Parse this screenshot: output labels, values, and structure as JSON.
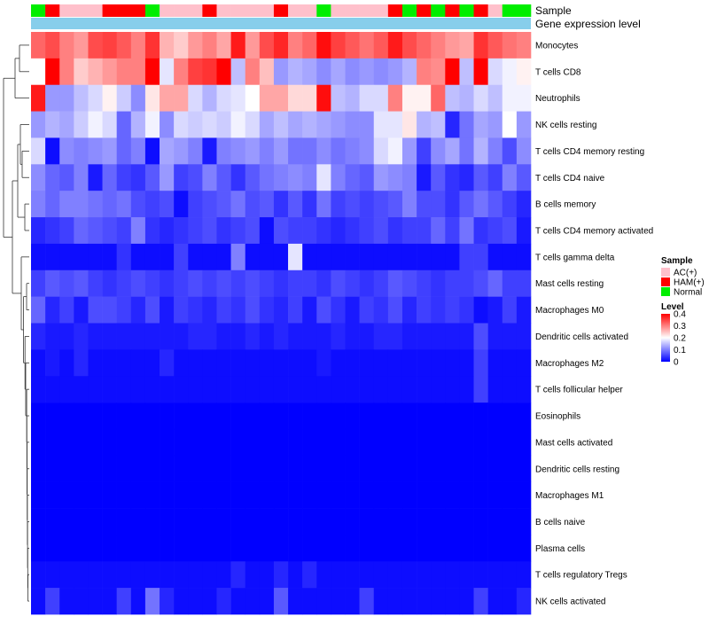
{
  "chart_data": {
    "type": "heatmap",
    "title": "",
    "annotation_tracks": [
      {
        "name": "Sample",
        "label": "Sample"
      },
      {
        "name": "Gene expression level",
        "label": "Gene expression level",
        "color": "#87ceeb"
      }
    ],
    "sample_groups": [
      "AC(+)",
      "HAM(+)",
      "Normal"
    ],
    "sample_colors": {
      "AC(+)": "#ffc0cb",
      "HAM(+)": "#ff0000",
      "Normal": "#00ee00"
    },
    "samples": [
      "Normal",
      "HAM(+)",
      "AC(+)",
      "AC(+)",
      "AC(+)",
      "HAM(+)",
      "HAM(+)",
      "HAM(+)",
      "Normal",
      "AC(+)",
      "AC(+)",
      "AC(+)",
      "HAM(+)",
      "AC(+)",
      "AC(+)",
      "AC(+)",
      "AC(+)",
      "HAM(+)",
      "AC(+)",
      "AC(+)",
      "Normal",
      "AC(+)",
      "AC(+)",
      "AC(+)",
      "AC(+)",
      "HAM(+)",
      "Normal",
      "HAM(+)",
      "Normal",
      "HAM(+)",
      "Normal",
      "HAM(+)",
      "AC(+)",
      "Normal",
      "Normal"
    ],
    "rows": [
      "Monocytes",
      "T cells CD8",
      "Neutrophils",
      "NK cells resting",
      "T cells CD4 memory resting",
      "T cells CD4 naive",
      "B cells memory",
      "T cells CD4 memory activated",
      "T cells gamma delta",
      "Mast cells resting",
      "Macrophages M0",
      "Dendritic cells activated",
      "Macrophages M2",
      "T cells follicular helper",
      "Eosinophils",
      "Mast cells activated",
      "Dendritic cells resting",
      "Macrophages M1",
      "B cells naive",
      "Plasma cells",
      "T cells regulatory  Tregs",
      "NK cells activated"
    ],
    "values": [
      [
        0.32,
        0.34,
        0.3,
        0.28,
        0.34,
        0.35,
        0.33,
        0.3,
        0.36,
        0.26,
        0.24,
        0.28,
        0.3,
        0.27,
        0.38,
        0.28,
        0.34,
        0.37,
        0.3,
        0.32,
        0.39,
        0.35,
        0.33,
        0.31,
        0.33,
        0.38,
        0.34,
        0.32,
        0.3,
        0.28,
        0.27,
        0.36,
        0.33,
        0.31,
        0.3
      ],
      [
        0.2,
        0.4,
        0.3,
        0.24,
        0.26,
        0.28,
        0.3,
        0.3,
        0.42,
        0.18,
        0.3,
        0.35,
        0.36,
        0.42,
        0.15,
        0.3,
        0.25,
        0.12,
        0.14,
        0.13,
        0.11,
        0.13,
        0.11,
        0.12,
        0.11,
        0.12,
        0.14,
        0.3,
        0.29,
        0.42,
        0.15,
        0.42,
        0.17,
        0.19,
        0.21
      ],
      [
        0.38,
        0.12,
        0.12,
        0.15,
        0.17,
        0.21,
        0.16,
        0.11,
        0.22,
        0.27,
        0.27,
        0.17,
        0.14,
        0.17,
        0.18,
        0.2,
        0.27,
        0.27,
        0.23,
        0.23,
        0.39,
        0.15,
        0.14,
        0.17,
        0.17,
        0.3,
        0.21,
        0.21,
        0.32,
        0.15,
        0.14,
        0.17,
        0.15,
        0.19,
        0.19
      ],
      [
        0.12,
        0.14,
        0.13,
        0.16,
        0.19,
        0.17,
        0.08,
        0.14,
        0.19,
        0.11,
        0.17,
        0.16,
        0.17,
        0.16,
        0.19,
        0.17,
        0.13,
        0.15,
        0.13,
        0.14,
        0.13,
        0.12,
        0.11,
        0.11,
        0.18,
        0.18,
        0.22,
        0.14,
        0.15,
        0.03,
        0.09,
        0.13,
        0.12,
        0.2,
        0.12
      ],
      [
        0.17,
        0.01,
        0.11,
        0.1,
        0.11,
        0.12,
        0.08,
        0.1,
        0.01,
        0.13,
        0.12,
        0.1,
        0.02,
        0.1,
        0.11,
        0.12,
        0.1,
        0.12,
        0.09,
        0.09,
        0.11,
        0.09,
        0.1,
        0.11,
        0.17,
        0.19,
        0.12,
        0.05,
        0.11,
        0.13,
        0.09,
        0.14,
        0.1,
        0.06,
        0.11
      ],
      [
        0.11,
        0.08,
        0.07,
        0.1,
        0.02,
        0.08,
        0.05,
        0.04,
        0.07,
        0.12,
        0.05,
        0.06,
        0.1,
        0.07,
        0.04,
        0.07,
        0.09,
        0.1,
        0.11,
        0.1,
        0.18,
        0.1,
        0.08,
        0.07,
        0.12,
        0.11,
        0.1,
        0.02,
        0.07,
        0.04,
        0.03,
        0.07,
        0.05,
        0.1,
        0.07
      ],
      [
        0.1,
        0.08,
        0.1,
        0.1,
        0.09,
        0.08,
        0.09,
        0.06,
        0.05,
        0.06,
        0.01,
        0.05,
        0.06,
        0.07,
        0.09,
        0.06,
        0.07,
        0.04,
        0.07,
        0.04,
        0.09,
        0.05,
        0.06,
        0.05,
        0.06,
        0.07,
        0.1,
        0.06,
        0.06,
        0.04,
        0.07,
        0.09,
        0.07,
        0.05,
        0.03
      ],
      [
        0.03,
        0.04,
        0.05,
        0.08,
        0.07,
        0.06,
        0.05,
        0.1,
        0.04,
        0.03,
        0.04,
        0.05,
        0.06,
        0.04,
        0.05,
        0.06,
        0.01,
        0.06,
        0.05,
        0.05,
        0.04,
        0.03,
        0.04,
        0.05,
        0.06,
        0.04,
        0.05,
        0.05,
        0.08,
        0.05,
        0.09,
        0.04,
        0.05,
        0.06,
        0.02
      ],
      [
        0.01,
        0.01,
        0.01,
        0.01,
        0.01,
        0.01,
        0.04,
        0.01,
        0.01,
        0.01,
        0.05,
        0.01,
        0.01,
        0.01,
        0.1,
        0.01,
        0.01,
        0.01,
        0.18,
        0.01,
        0.01,
        0.01,
        0.01,
        0.01,
        0.01,
        0.01,
        0.01,
        0.01,
        0.01,
        0.01,
        0.05,
        0.05,
        0.01,
        0.01,
        0.01
      ],
      [
        0.05,
        0.07,
        0.06,
        0.07,
        0.05,
        0.04,
        0.05,
        0.06,
        0.05,
        0.04,
        0.05,
        0.06,
        0.05,
        0.06,
        0.05,
        0.06,
        0.05,
        0.04,
        0.05,
        0.05,
        0.04,
        0.06,
        0.05,
        0.04,
        0.05,
        0.07,
        0.06,
        0.05,
        0.04,
        0.05,
        0.05,
        0.06,
        0.08,
        0.05,
        0.05
      ],
      [
        0.08,
        0.03,
        0.05,
        0.02,
        0.06,
        0.06,
        0.05,
        0.03,
        0.06,
        0.02,
        0.05,
        0.04,
        0.03,
        0.05,
        0.04,
        0.06,
        0.04,
        0.03,
        0.05,
        0.02,
        0.06,
        0.04,
        0.02,
        0.05,
        0.04,
        0.06,
        0.03,
        0.05,
        0.04,
        0.05,
        0.04,
        0.01,
        0.02,
        0.05,
        0.02
      ],
      [
        0.03,
        0.02,
        0.02,
        0.03,
        0.02,
        0.02,
        0.02,
        0.02,
        0.02,
        0.02,
        0.02,
        0.03,
        0.03,
        0.02,
        0.02,
        0.03,
        0.02,
        0.03,
        0.02,
        0.02,
        0.02,
        0.03,
        0.02,
        0.02,
        0.03,
        0.03,
        0.02,
        0.02,
        0.02,
        0.02,
        0.02,
        0.06,
        0.02,
        0.02,
        0.02
      ],
      [
        0.01,
        0.02,
        0.01,
        0.03,
        0.01,
        0.01,
        0.01,
        0.01,
        0.01,
        0.03,
        0.01,
        0.01,
        0.01,
        0.01,
        0.01,
        0.01,
        0.01,
        0.01,
        0.01,
        0.01,
        0.02,
        0.01,
        0.01,
        0.01,
        0.01,
        0.01,
        0.01,
        0.01,
        0.01,
        0.01,
        0.01,
        0.05,
        0.01,
        0.01,
        0.01
      ],
      [
        0.01,
        0.01,
        0.01,
        0.01,
        0.01,
        0.01,
        0.01,
        0.01,
        0.01,
        0.01,
        0.01,
        0.01,
        0.01,
        0.01,
        0.01,
        0.01,
        0.01,
        0.01,
        0.01,
        0.01,
        0.01,
        0.01,
        0.01,
        0.01,
        0.01,
        0.01,
        0.01,
        0.01,
        0.01,
        0.01,
        0.01,
        0.05,
        0.01,
        0.01,
        0.01
      ],
      [
        0.0,
        0.0,
        0.0,
        0.0,
        0.0,
        0.0,
        0.0,
        0.0,
        0.0,
        0.0,
        0.0,
        0.0,
        0.0,
        0.0,
        0.0,
        0.0,
        0.0,
        0.0,
        0.0,
        0.0,
        0.0,
        0.0,
        0.0,
        0.0,
        0.0,
        0.0,
        0.0,
        0.0,
        0.0,
        0.0,
        0.0,
        0.0,
        0.0,
        0.0,
        0.0
      ],
      [
        0.0,
        0.0,
        0.0,
        0.0,
        0.0,
        0.0,
        0.0,
        0.0,
        0.0,
        0.0,
        0.0,
        0.0,
        0.0,
        0.0,
        0.0,
        0.0,
        0.0,
        0.0,
        0.0,
        0.0,
        0.0,
        0.0,
        0.0,
        0.0,
        0.0,
        0.0,
        0.0,
        0.0,
        0.0,
        0.0,
        0.0,
        0.0,
        0.0,
        0.0,
        0.0
      ],
      [
        0.0,
        0.0,
        0.0,
        0.0,
        0.0,
        0.0,
        0.0,
        0.0,
        0.0,
        0.0,
        0.0,
        0.0,
        0.0,
        0.0,
        0.0,
        0.0,
        0.0,
        0.0,
        0.0,
        0.0,
        0.0,
        0.0,
        0.0,
        0.0,
        0.0,
        0.0,
        0.0,
        0.0,
        0.0,
        0.0,
        0.0,
        0.0,
        0.0,
        0.0,
        0.0
      ],
      [
        0.0,
        0.0,
        0.0,
        0.0,
        0.0,
        0.0,
        0.0,
        0.0,
        0.0,
        0.0,
        0.0,
        0.0,
        0.0,
        0.0,
        0.0,
        0.0,
        0.0,
        0.0,
        0.0,
        0.0,
        0.0,
        0.0,
        0.0,
        0.0,
        0.0,
        0.0,
        0.0,
        0.0,
        0.0,
        0.0,
        0.0,
        0.0,
        0.0,
        0.0,
        0.0
      ],
      [
        0.0,
        0.0,
        0.0,
        0.0,
        0.0,
        0.0,
        0.0,
        0.0,
        0.0,
        0.0,
        0.0,
        0.0,
        0.0,
        0.0,
        0.0,
        0.0,
        0.0,
        0.0,
        0.0,
        0.0,
        0.0,
        0.0,
        0.0,
        0.0,
        0.0,
        0.0,
        0.0,
        0.0,
        0.0,
        0.0,
        0.0,
        0.0,
        0.0,
        0.0,
        0.0
      ],
      [
        0.0,
        0.0,
        0.0,
        0.0,
        0.0,
        0.0,
        0.0,
        0.0,
        0.0,
        0.0,
        0.0,
        0.0,
        0.0,
        0.0,
        0.0,
        0.0,
        0.0,
        0.0,
        0.0,
        0.0,
        0.0,
        0.0,
        0.0,
        0.0,
        0.0,
        0.0,
        0.0,
        0.0,
        0.0,
        0.0,
        0.0,
        0.0,
        0.0,
        0.0,
        0.0
      ],
      [
        0.01,
        0.01,
        0.01,
        0.01,
        0.01,
        0.01,
        0.01,
        0.01,
        0.01,
        0.01,
        0.01,
        0.01,
        0.01,
        0.01,
        0.03,
        0.01,
        0.01,
        0.03,
        0.01,
        0.03,
        0.01,
        0.01,
        0.01,
        0.01,
        0.01,
        0.01,
        0.01,
        0.01,
        0.01,
        0.01,
        0.01,
        0.01,
        0.01,
        0.01,
        0.01
      ],
      [
        0.01,
        0.05,
        0.01,
        0.01,
        0.01,
        0.01,
        0.05,
        0.01,
        0.09,
        0.03,
        0.01,
        0.01,
        0.01,
        0.03,
        0.01,
        0.01,
        0.01,
        0.07,
        0.01,
        0.01,
        0.01,
        0.01,
        0.01,
        0.05,
        0.01,
        0.01,
        0.01,
        0.01,
        0.01,
        0.01,
        0.01,
        0.05,
        0.01,
        0.01,
        0.03
      ]
    ],
    "legend_sample": {
      "title": "Sample",
      "entries": [
        "AC(+)",
        "HAM(+)",
        "Normal"
      ]
    },
    "legend_level": {
      "title": "Level",
      "ticks": [
        "0.4",
        "0.3",
        "0.2",
        "0.1",
        "0"
      ],
      "tick_values": [
        0.4,
        0.3,
        0.2,
        0.1,
        0
      ],
      "range": [
        0,
        0.4
      ]
    },
    "color_scale": {
      "low": "#0000ff",
      "mid": "#ffffff",
      "high": "#ff0000"
    },
    "row_dendrogram": true
  }
}
